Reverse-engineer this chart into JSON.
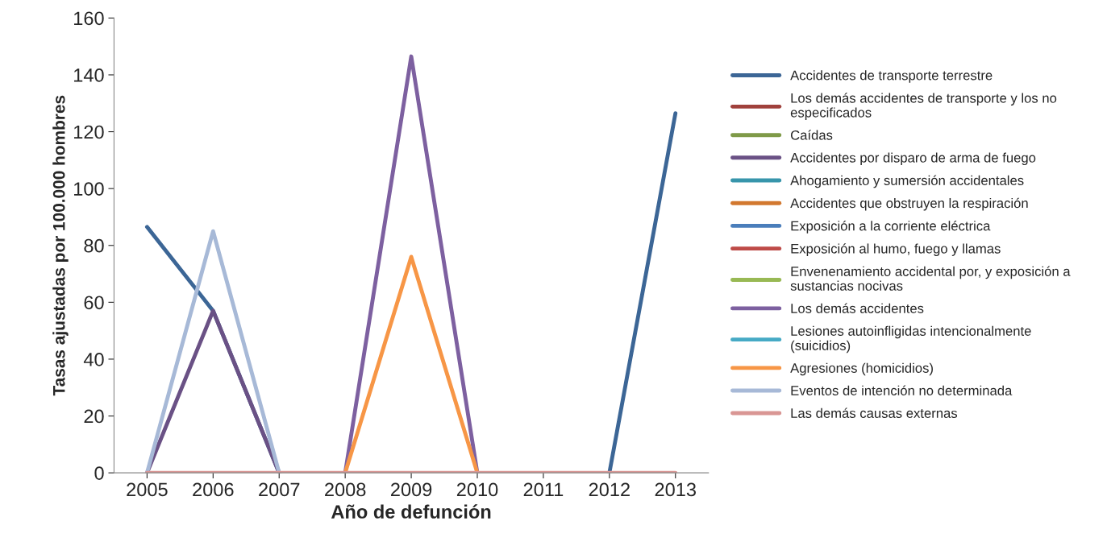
{
  "chart_data": {
    "type": "line",
    "xlabel": "Año de defunción",
    "ylabel": "Tasas ajustadas por 100.000 hombres",
    "categories": [
      "2005",
      "2006",
      "2007",
      "2008",
      "2009",
      "2010",
      "2011",
      "2012",
      "2013"
    ],
    "ylim": [
      0,
      160
    ],
    "yticks": [
      0,
      20,
      40,
      60,
      80,
      100,
      120,
      140,
      160
    ],
    "grid": false,
    "legend": "right",
    "marker": "none",
    "line_style": "solid",
    "series": [
      {
        "name": "Accidentes de transporte terrestre",
        "color": "#3c6696",
        "values": [
          86.5,
          57,
          0,
          null,
          null,
          null,
          null,
          0,
          126.5
        ]
      },
      {
        "name": "Los demás accidentes de transporte y los no especificados",
        "color": "#a0413c",
        "values": [
          null,
          null,
          null,
          null,
          null,
          null,
          null,
          null,
          null
        ]
      },
      {
        "name": "Caídas",
        "color": "#7f9a48",
        "values": [
          null,
          null,
          null,
          null,
          null,
          null,
          null,
          null,
          null
        ]
      },
      {
        "name": "Accidentes por disparo de arma de fuego",
        "color": "#6a5185",
        "values": [
          0,
          57,
          0,
          null,
          null,
          null,
          null,
          null,
          null
        ]
      },
      {
        "name": "Ahogamiento y sumersión accidentales",
        "color": "#3795ab",
        "values": [
          null,
          null,
          null,
          null,
          null,
          null,
          null,
          null,
          null
        ]
      },
      {
        "name": "Accidentes que obstruyen la respiración",
        "color": "#d2782f",
        "values": [
          null,
          null,
          null,
          null,
          null,
          null,
          null,
          null,
          null
        ]
      },
      {
        "name": "Exposición a la corriente eléctrica",
        "color": "#4a7ebb",
        "values": [
          null,
          null,
          null,
          null,
          null,
          null,
          null,
          null,
          null
        ]
      },
      {
        "name": "Exposición al humo, fuego y llamas",
        "color": "#be4b48",
        "values": [
          null,
          null,
          null,
          null,
          null,
          null,
          null,
          null,
          null
        ]
      },
      {
        "name": "Envenenamiento accidental por, y exposición a sustancias nocivas",
        "color": "#98b954",
        "values": [
          null,
          null,
          null,
          null,
          null,
          null,
          null,
          null,
          null
        ]
      },
      {
        "name": "Los demás accidentes",
        "color": "#7d60a0",
        "values": [
          null,
          null,
          null,
          0,
          146.5,
          0,
          null,
          null,
          null
        ]
      },
      {
        "name": "Lesiones autoinfligidas intencionalmente (suicidios)",
        "color": "#46aac5",
        "values": [
          null,
          null,
          null,
          null,
          null,
          null,
          null,
          null,
          null
        ]
      },
      {
        "name": "Agresiones (homicidios)",
        "color": "#f79646",
        "values": [
          null,
          null,
          null,
          0,
          76,
          0,
          null,
          null,
          null
        ]
      },
      {
        "name": "Eventos de intención no determinada",
        "color": "#a7b9d7",
        "values": [
          0,
          85,
          0,
          null,
          null,
          null,
          null,
          null,
          null
        ]
      },
      {
        "name": "Las demás causas externas",
        "color": "#d99694",
        "values": [
          0,
          0,
          0,
          0,
          0,
          0,
          0,
          0,
          0
        ]
      }
    ]
  }
}
